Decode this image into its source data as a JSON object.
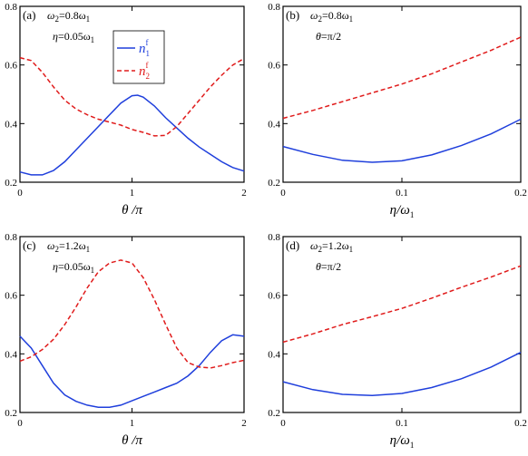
{
  "colors": {
    "n1": "#1f3fdc",
    "n2": "#e01b1b"
  },
  "legend": {
    "n1": "n",
    "n1_sup": "f",
    "n1_sub": "1",
    "n2": "n",
    "n2_sup": "f",
    "n2_sub": "2"
  },
  "chart_data": [
    {
      "type": "line",
      "panel": "(a)",
      "annotations": [
        {
          "text": "ω",
          "sub": "2",
          "rest": "=0.8ω",
          "rest_sub": "1"
        },
        {
          "text": "η",
          "sub": "",
          "rest": "=0.05ω",
          "rest_sub": "1"
        }
      ],
      "xlabel": "θ /π",
      "xlim": [
        0,
        2
      ],
      "ylim": [
        0.2,
        0.8
      ],
      "xticks": [
        "0",
        "1",
        "2"
      ],
      "yticks": [
        "0.2",
        "0.4",
        "0.6",
        "0.8"
      ],
      "x": [
        0,
        0.1,
        0.2,
        0.3,
        0.4,
        0.5,
        0.6,
        0.7,
        0.8,
        0.9,
        1.0,
        1.05,
        1.1,
        1.2,
        1.3,
        1.4,
        1.5,
        1.6,
        1.7,
        1.8,
        1.9,
        2.0
      ],
      "series": [
        {
          "key": "n1",
          "values": [
            0.235,
            0.225,
            0.225,
            0.24,
            0.27,
            0.31,
            0.35,
            0.39,
            0.43,
            0.47,
            0.495,
            0.497,
            0.49,
            0.46,
            0.42,
            0.385,
            0.35,
            0.32,
            0.295,
            0.27,
            0.25,
            0.238
          ]
        },
        {
          "key": "n2",
          "values": [
            0.625,
            0.615,
            0.575,
            0.525,
            0.48,
            0.45,
            0.43,
            0.415,
            0.405,
            0.395,
            0.38,
            0.375,
            0.37,
            0.358,
            0.36,
            0.39,
            0.435,
            0.48,
            0.525,
            0.565,
            0.6,
            0.622
          ]
        }
      ]
    },
    {
      "type": "line",
      "panel": "(b)",
      "annotations": [
        {
          "text": "ω",
          "sub": "2",
          "rest": "=0.8ω",
          "rest_sub": "1"
        },
        {
          "text": "θ",
          "sub": "",
          "rest": "=π/2",
          "rest_sub": ""
        }
      ],
      "xlabel": "η/ω",
      "xlabel_sub": "1",
      "xlim": [
        0,
        0.2
      ],
      "ylim": [
        0.2,
        0.8
      ],
      "xticks": [
        "0",
        "0.1",
        "0.2"
      ],
      "yticks": [
        "0.2",
        "0.4",
        "0.6",
        "0.8"
      ],
      "x": [
        0,
        0.025,
        0.05,
        0.075,
        0.1,
        0.125,
        0.15,
        0.175,
        0.2
      ],
      "series": [
        {
          "key": "n1",
          "values": [
            0.322,
            0.295,
            0.275,
            0.268,
            0.273,
            0.293,
            0.325,
            0.365,
            0.415
          ]
        },
        {
          "key": "n2",
          "values": [
            0.418,
            0.445,
            0.475,
            0.505,
            0.535,
            0.57,
            0.61,
            0.65,
            0.695
          ]
        }
      ]
    },
    {
      "type": "line",
      "panel": "(c)",
      "annotations": [
        {
          "text": "ω",
          "sub": "2",
          "rest": "=1.2ω",
          "rest_sub": "1"
        },
        {
          "text": "η",
          "sub": "",
          "rest": "=0.05ω",
          "rest_sub": "1"
        }
      ],
      "xlabel": "θ /π",
      "xlim": [
        0,
        2
      ],
      "ylim": [
        0.2,
        0.8
      ],
      "xticks": [
        "0",
        "1",
        "2"
      ],
      "yticks": [
        "0.2",
        "0.4",
        "0.6",
        "0.8"
      ],
      "x": [
        0,
        0.1,
        0.2,
        0.3,
        0.4,
        0.5,
        0.6,
        0.7,
        0.8,
        0.9,
        1.0,
        1.1,
        1.2,
        1.3,
        1.4,
        1.5,
        1.6,
        1.7,
        1.8,
        1.9,
        2.0
      ],
      "series": [
        {
          "key": "n1",
          "values": [
            0.46,
            0.42,
            0.36,
            0.3,
            0.26,
            0.238,
            0.225,
            0.218,
            0.218,
            0.225,
            0.24,
            0.255,
            0.27,
            0.285,
            0.3,
            0.325,
            0.36,
            0.405,
            0.445,
            0.465,
            0.46
          ]
        },
        {
          "key": "n2",
          "values": [
            0.375,
            0.39,
            0.415,
            0.45,
            0.5,
            0.56,
            0.625,
            0.68,
            0.71,
            0.72,
            0.71,
            0.66,
            0.585,
            0.5,
            0.42,
            0.37,
            0.355,
            0.352,
            0.36,
            0.37,
            0.378
          ]
        }
      ]
    },
    {
      "type": "line",
      "panel": "(d)",
      "annotations": [
        {
          "text": "ω",
          "sub": "2",
          "rest": "=1.2ω",
          "rest_sub": "1"
        },
        {
          "text": "θ",
          "sub": "",
          "rest": "=π/2",
          "rest_sub": ""
        }
      ],
      "xlabel": "η/ω",
      "xlabel_sub": "1",
      "xlim": [
        0,
        0.2
      ],
      "ylim": [
        0.2,
        0.8
      ],
      "xticks": [
        "0",
        "0.1",
        "0.2"
      ],
      "yticks": [
        "0.2",
        "0.4",
        "0.6",
        "0.8"
      ],
      "x": [
        0,
        0.025,
        0.05,
        0.075,
        0.1,
        0.125,
        0.15,
        0.175,
        0.2
      ],
      "series": [
        {
          "key": "n1",
          "values": [
            0.305,
            0.278,
            0.262,
            0.258,
            0.265,
            0.285,
            0.315,
            0.355,
            0.405
          ]
        },
        {
          "key": "n2",
          "values": [
            0.44,
            0.468,
            0.5,
            0.527,
            0.555,
            0.59,
            0.627,
            0.662,
            0.7
          ]
        }
      ]
    }
  ]
}
